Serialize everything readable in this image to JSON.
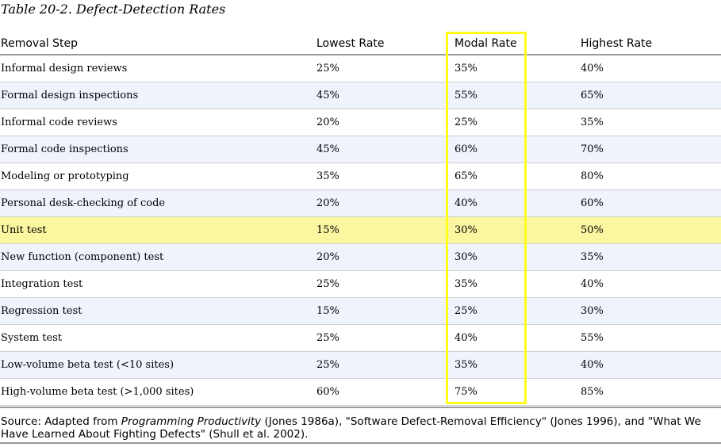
{
  "caption": "Table 20-2. Defect-Detection Rates",
  "columns": [
    "Removal Step",
    "Lowest Rate",
    "Modal Rate",
    "Highest Rate"
  ],
  "rows": [
    [
      "Informal design reviews",
      "25%",
      "35%",
      "40%"
    ],
    [
      "Formal design inspections",
      "45%",
      "55%",
      "65%"
    ],
    [
      "Informal code reviews",
      "20%",
      "25%",
      "35%"
    ],
    [
      "Formal code inspections",
      "45%",
      "60%",
      "70%"
    ],
    [
      "Modeling or prototyping",
      "35%",
      "65%",
      "80%"
    ],
    [
      "Personal desk-checking of code",
      "20%",
      "40%",
      "60%"
    ],
    [
      "Unit test",
      "15%",
      "30%",
      "50%"
    ],
    [
      "New function (component) test",
      "20%",
      "30%",
      "35%"
    ],
    [
      "Integration test",
      "25%",
      "35%",
      "40%"
    ],
    [
      "Regression test",
      "15%",
      "25%",
      "30%"
    ],
    [
      "System test",
      "25%",
      "40%",
      "55%"
    ],
    [
      "Low-volume beta test (<10 sites)",
      "25%",
      "35%",
      "40%"
    ],
    [
      "High-volume beta test (>1,000 sites)",
      "60%",
      "75%",
      "85%"
    ]
  ],
  "highlighted_row": 6,
  "highlighted_column": 2,
  "source": {
    "prefix": "Source: Adapted from ",
    "title": "Programming Productivity",
    "suffix": " (Jones 1986a), \"Software Defect-Removal Efficiency\" (Jones 1996), and \"What We Have Learned About Fighting Defects\" (Shull et al. 2002)."
  },
  "colors": {
    "row_alt": "#eff3fb",
    "highlight_row": "#fbf6a0",
    "highlight_box": "#ffff1a",
    "rule": "#9a9a9a"
  }
}
